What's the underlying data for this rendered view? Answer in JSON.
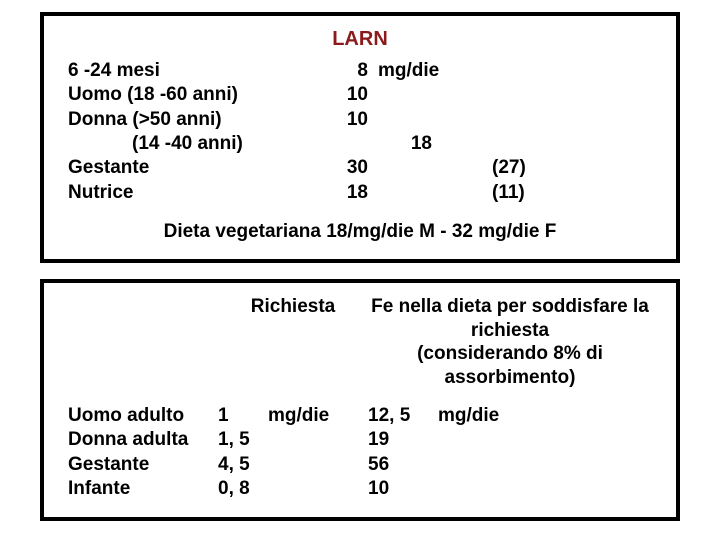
{
  "panel1": {
    "title": "LARN",
    "rows": [
      {
        "label": "6 -24 mesi",
        "value": "8",
        "unit": "mg/die",
        "extra": ""
      },
      {
        "label": "Uomo (18 -60 anni)",
        "value": "10",
        "unit": "",
        "extra": ""
      },
      {
        "label": "Donna (>50 anni)",
        "value": "10",
        "unit": "",
        "extra": ""
      },
      {
        "label": "(14 -40 anni)",
        "value": "18",
        "unit": "",
        "extra": "",
        "indent": true
      },
      {
        "label": "Gestante",
        "value": "30",
        "unit": "",
        "extra": "(27)"
      },
      {
        "label": "Nutrice",
        "value": "18",
        "unit": "",
        "extra": "(11)"
      }
    ],
    "diet_note": "Dieta vegetariana  18/mg/die M - 32 mg/die F"
  },
  "panel2": {
    "header": {
      "mid": "Richiesta",
      "right_line1": "Fe nella dieta per soddisfare la richiesta",
      "right_line2": "(considerando 8% di assorbimento)"
    },
    "rows": [
      {
        "label": "Uomo adulto",
        "val": "1",
        "unit": "mg/die",
        "val2": "12, 5",
        "unit2": "mg/die"
      },
      {
        "label": "Donna adulta",
        "val": "1, 5",
        "unit": "",
        "val2": "19",
        "unit2": ""
      },
      {
        "label": "Gestante",
        "val": "4, 5",
        "unit": "",
        "val2": "56",
        "unit2": ""
      },
      {
        "label": "Infante",
        "val": "0, 8",
        "unit": "",
        "val2": "10",
        "unit2": ""
      }
    ]
  }
}
